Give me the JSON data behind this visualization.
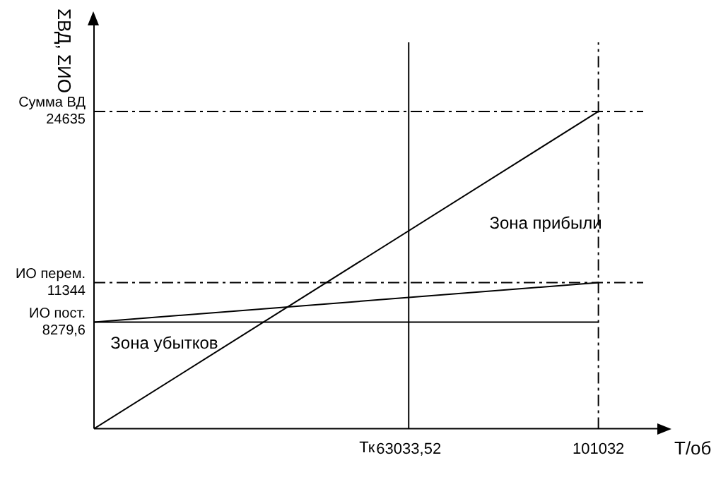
{
  "chart_data": {
    "type": "line",
    "xlabel": "Т/об",
    "ylabel": "ΣВД, ΣИО",
    "x": [
      0,
      101032
    ],
    "series": [
      {
        "color": "#000000",
        "values": [
          0,
          24635
        ]
      },
      {
        "color": "#000000",
        "values": [
          8279.6,
          11344
        ]
      },
      {
        "color": "#000000",
        "values": [
          8279.6,
          8279.6
        ]
      }
    ],
    "xlim": [
      0,
      110000
    ],
    "ylim": [
      0,
      30000
    ],
    "xticks": [
      {
        "value": 63033.52,
        "label": "63033,52"
      },
      {
        "value": 101032,
        "label": "101032"
      }
    ],
    "yticks": [
      {
        "value": 8279.6,
        "label": "ИО пост.\n8279,6"
      },
      {
        "value": 11344,
        "label": "ИО перем.\n11344"
      },
      {
        "value": 24635,
        "label": "Сумма ВД\n24635"
      }
    ],
    "ref_lines": [
      {
        "axis": "y",
        "value": 24635,
        "line_style": "dashed",
        "color": "#000000"
      },
      {
        "axis": "y",
        "value": 11344,
        "line_style": "dashed",
        "color": "#000000"
      },
      {
        "axis": "x",
        "value": 101032,
        "line_style": "dashed",
        "color": "#000000"
      },
      {
        "axis": "x",
        "value": 63033.52,
        "line_style": "solid",
        "color": "#000000",
        "label": "Тк"
      }
    ],
    "annotations": [
      "Зона убытков",
      "Зона прибыли"
    ],
    "grid": false,
    "legend": false,
    "marker": "none",
    "line_style": "solid"
  }
}
